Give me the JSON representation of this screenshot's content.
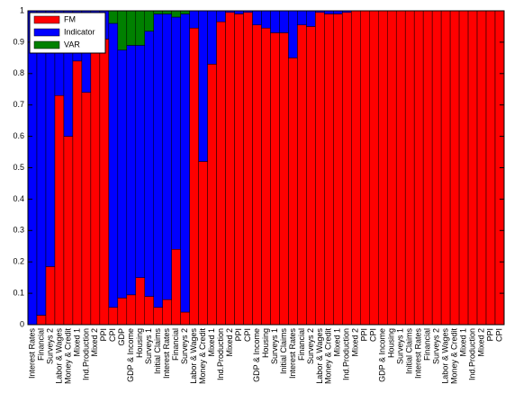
{
  "chart_data": {
    "type": "stacked_bar",
    "categories": [
      "Interest Rates",
      "Financial",
      "Surveys 2",
      "Labor & Wages",
      "Money & Credit",
      "Mixed 1",
      "Ind.Production",
      "Mixed 2",
      "PPI",
      "CPI",
      "GDP",
      "GDP & Income",
      "Housing",
      "Surveys 1",
      "Initial Claims",
      "Interest Rates",
      "Financial",
      "Surveys 2",
      "Labor & Wages",
      "Money & Credit",
      "Mixed 1",
      "Ind.Production",
      "Mixed 2",
      "PPI",
      "CPI",
      "GDP & Income",
      "Housing",
      "Surveys 1",
      "Initial Claims",
      "Interest Rates",
      "Financial",
      "Surveys 2",
      "Labor & Wages",
      "Money & Credit",
      "Mixed 1",
      "Ind.Production",
      "Mixed 2",
      "PPI",
      "CPI",
      "GDP & Income",
      "Housing",
      "Surveys 1",
      "Initial Claims",
      "Interest Rates",
      "Financial",
      "Surveys 2",
      "Labor & Wages",
      "Money & Credit",
      "Mixed 1",
      "Ind.Production",
      "Mixed 2",
      "PPI",
      "CPI"
    ],
    "series": [
      {
        "name": "FM",
        "color": "#ff0000",
        "values": [
          0,
          0.03,
          0.185,
          0.73,
          0.6,
          0.84,
          0.74,
          0.87,
          0.91,
          0.055,
          0.085,
          0.095,
          0.15,
          0.09,
          0.055,
          0.08,
          0.24,
          0.04,
          0.945,
          0.52,
          0.83,
          0.965,
          0.995,
          0.99,
          0.995,
          0.955,
          0.945,
          0.93,
          0.93,
          0.85,
          0.955,
          0.95,
          0.995,
          0.99,
          0.99,
          0.995,
          1,
          1,
          1,
          1,
          1,
          1,
          1,
          1,
          1,
          1,
          1,
          1,
          1,
          1,
          1,
          1,
          1
        ]
      },
      {
        "name": "Indicator",
        "color": "#0000ff",
        "values": [
          1,
          0.97,
          0.815,
          0.27,
          0.4,
          0.16,
          0.26,
          0.13,
          0.09,
          0.905,
          0.79,
          0.795,
          0.74,
          0.845,
          0.935,
          0.91,
          0.74,
          0.95,
          0.055,
          0.48,
          0.17,
          0.035,
          0.005,
          0.01,
          0.005,
          0.045,
          0.055,
          0.07,
          0.07,
          0.15,
          0.045,
          0.05,
          0.005,
          0.01,
          0.01,
          0.005,
          0,
          0,
          0,
          0,
          0,
          0,
          0,
          0,
          0,
          0,
          0,
          0,
          0,
          0,
          0,
          0,
          0
        ]
      },
      {
        "name": "VAR",
        "color": "#008000",
        "values": [
          0,
          0,
          0,
          0,
          0,
          0,
          0,
          0,
          0,
          0.04,
          0.125,
          0.11,
          0.11,
          0.065,
          0.01,
          0.01,
          0.02,
          0.01,
          0,
          0,
          0,
          0,
          0,
          0,
          0,
          0,
          0,
          0,
          0,
          0,
          0,
          0,
          0,
          0,
          0,
          0,
          0,
          0,
          0,
          0,
          0,
          0,
          0,
          0,
          0,
          0,
          0,
          0,
          0,
          0,
          0,
          0,
          0
        ]
      }
    ],
    "ylim": [
      0,
      1
    ],
    "yticks": [
      0,
      0.1,
      0.2,
      0.3,
      0.4,
      0.5,
      0.6,
      0.7,
      0.8,
      0.9,
      1
    ],
    "legend": "upper-left"
  }
}
